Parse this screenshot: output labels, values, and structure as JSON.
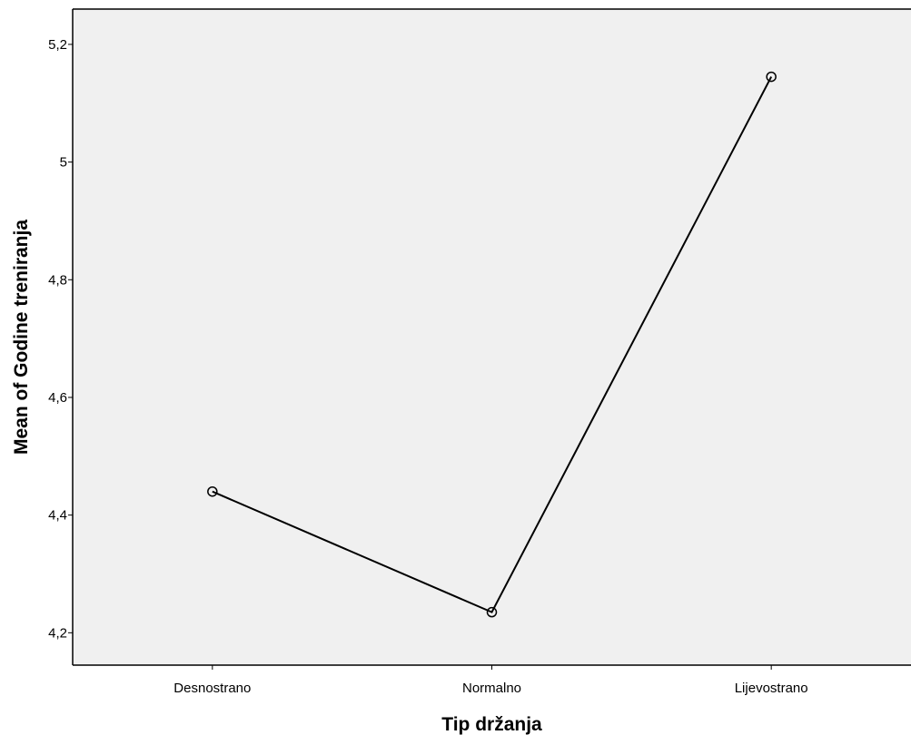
{
  "chart_data": {
    "type": "line",
    "title": "",
    "xlabel": "Tip držanja",
    "ylabel": "Mean of Godine treniranja",
    "categories": [
      "Desnostrano",
      "Normalno",
      "Lijevostrano"
    ],
    "series": [
      {
        "values": [
          4.44,
          4.235,
          5.145
        ]
      }
    ],
    "ylim": [
      4.145,
      5.26
    ],
    "yticks": [
      4.2,
      4.4,
      4.6,
      4.8,
      5.0,
      5.2
    ],
    "ytick_labels": [
      "4,2",
      "4,4",
      "4,6",
      "4,8",
      "5",
      "5,2"
    ],
    "grid": false,
    "legend": "none",
    "marker": "open-circle",
    "colors": {
      "plot_background": "#f0f0f0",
      "line": "#000000",
      "axis": "#000000"
    }
  }
}
